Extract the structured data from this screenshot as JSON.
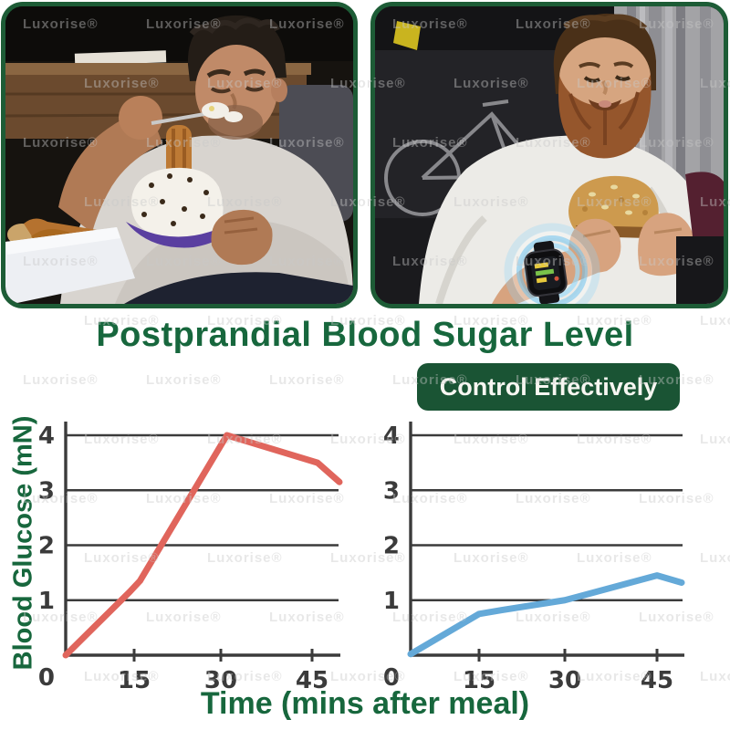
{
  "title": "Postprandial Blood Sugar Level",
  "badge_label": "Control Effectively",
  "watermark_text": "Luxorise®",
  "colors": {
    "title_green": "#17673d",
    "badge_green": "#1a5434",
    "frame_green": "#1d5c36",
    "axis_gray": "#3b3b3b",
    "line_red": "#e0655c",
    "line_blue": "#64a9d8",
    "watermark_gray": "#c9c9c9"
  },
  "icons": {
    "smartwatch": "smartwatch-icon",
    "glow_halo": "glow-halo-icon"
  },
  "chart_data": [
    {
      "id": "without_control",
      "type": "line",
      "title": "",
      "xlabel": "Time (mins after meal)",
      "ylabel": "Blood Glucose (mN)",
      "xlim": [
        0,
        50
      ],
      "ylim": [
        0,
        4
      ],
      "x_ticks": [
        0,
        15,
        30,
        45
      ],
      "y_ticks": [
        0,
        1,
        2,
        3,
        4
      ],
      "grid": "horizontal",
      "legend": "none",
      "series": [
        {
          "name": "blood-glucose-uncontrolled",
          "color": "#e0655c",
          "points": [
            [
              0,
              0
            ],
            [
              14,
              1.15
            ],
            [
              16,
              1.35
            ],
            [
              31,
              4.0
            ],
            [
              46,
              3.5
            ],
            [
              50,
              3.15
            ]
          ]
        }
      ]
    },
    {
      "id": "with_control",
      "type": "line",
      "title": "",
      "xlabel": "Time (mins after meal)",
      "ylabel": "Blood Glucose (mN)",
      "xlim": [
        0,
        50
      ],
      "ylim": [
        0,
        4
      ],
      "x_ticks": [
        0,
        15,
        30,
        45
      ],
      "y_ticks": [
        0,
        1,
        2,
        3,
        4
      ],
      "grid": "horizontal",
      "legend": "none",
      "series": [
        {
          "name": "blood-glucose-controlled",
          "color": "#64a9d8",
          "points": [
            [
              0,
              0.02
            ],
            [
              15,
              0.75
            ],
            [
              19,
              0.82
            ],
            [
              30,
              1.0
            ],
            [
              45,
              1.45
            ],
            [
              50,
              1.32
            ]
          ]
        }
      ]
    }
  ]
}
